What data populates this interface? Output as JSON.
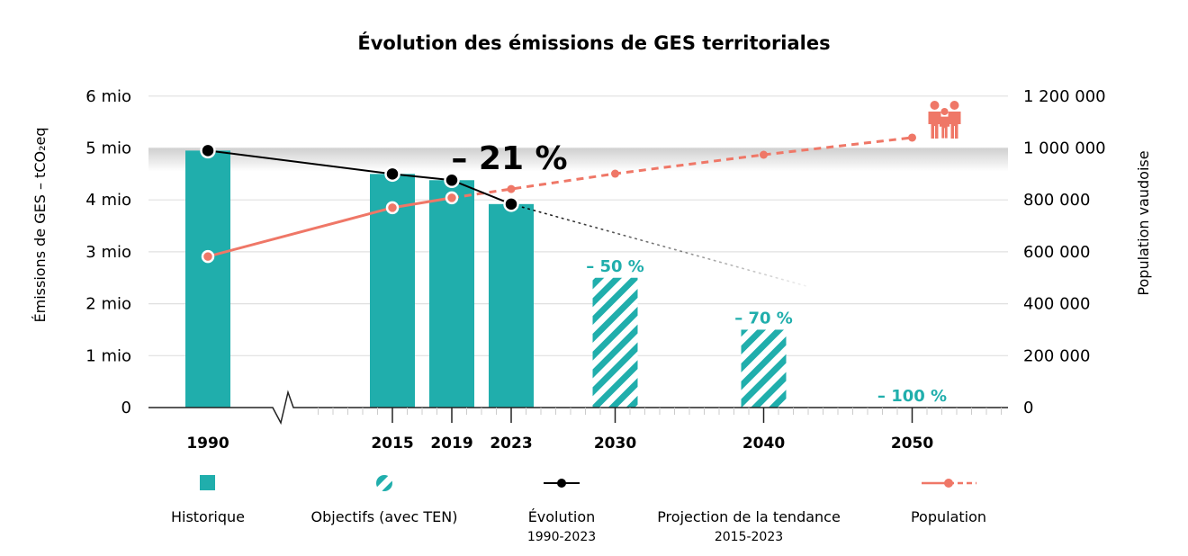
{
  "chart_data": {
    "type": "bar",
    "title": "Évolution des émissions de GES territoriales",
    "ylabel_left": "Émissions de GES – tCO₂eq",
    "ylabel_right": "Population vaudoise",
    "ylim_left": [
      0,
      6000000
    ],
    "ylim_right": [
      0,
      1200000
    ],
    "left_ticks": [
      "0",
      "1 mio",
      "2 mio",
      "3 mio",
      "4 mio",
      "5 mio",
      "6 mio"
    ],
    "right_ticks": [
      "0",
      "200 000",
      "400 000",
      "600 000",
      "800 000",
      "1 000 000",
      "1 200 000"
    ],
    "x_ticks": [
      "1990",
      "2015",
      "2019",
      "2023",
      "2030",
      "2040",
      "2050"
    ],
    "axis_break_after": 1990,
    "grid": true,
    "series": [
      {
        "name": "Historique",
        "kind": "bar",
        "x": [
          1990,
          2015,
          2019,
          2023
        ],
        "values": [
          4950000,
          4500000,
          4380000,
          3920000
        ]
      },
      {
        "name": "Objectifs (avec TEN)",
        "kind": "bar-hatched",
        "x": [
          2030,
          2040,
          2050
        ],
        "values": [
          2500000,
          1500000,
          0
        ],
        "labels": [
          "– 50 %",
          "– 70 %",
          "– 100 %"
        ]
      },
      {
        "name": "Évolution",
        "subtitle": "1990-2023",
        "kind": "line",
        "x": [
          1990,
          2015,
          2019,
          2023
        ],
        "values": [
          4950000,
          4500000,
          4380000,
          3920000
        ],
        "annotation": "– 21 %"
      },
      {
        "name": "Projection de la tendance",
        "subtitle": "2015-2023",
        "kind": "dotted-line",
        "x": [
          2023,
          2043
        ],
        "values": [
          3920000,
          2330000
        ]
      },
      {
        "name": "Population",
        "kind": "line-right-axis",
        "x": [
          1990,
          2015,
          2019,
          2023,
          2030,
          2040,
          2050
        ],
        "values": [
          582000,
          770000,
          808000,
          842000,
          901000,
          974000,
          1040000
        ],
        "projected_from": 2019
      }
    ],
    "legend_position": "bottom",
    "colors": {
      "teal": "#20aeac",
      "population": "#ef7767",
      "evolution": "#000000",
      "band": "#d9d9d9"
    },
    "icons": [
      "family-icon"
    ]
  }
}
